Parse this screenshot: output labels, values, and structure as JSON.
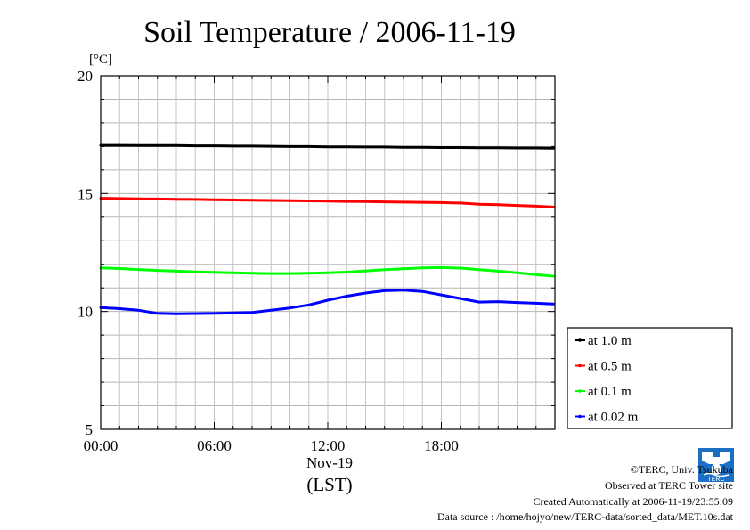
{
  "chart_data": {
    "type": "line",
    "title": "Soil Temperature / 2006-11-19",
    "ylabel": "[°C]",
    "xlabel": "(LST)",
    "date_label": "Nov-19",
    "xlim": [
      "00:00",
      "24:00"
    ],
    "ylim": [
      5,
      20
    ],
    "x_tick_labels": [
      "00:00",
      "06:00",
      "12:00",
      "18:00"
    ],
    "y_tick_labels": [
      "5",
      "10",
      "15",
      "20"
    ],
    "grid": true,
    "legend_position": "right, below plot top",
    "x": [
      "00:00",
      "01:00",
      "02:00",
      "03:00",
      "04:00",
      "05:00",
      "06:00",
      "07:00",
      "08:00",
      "09:00",
      "10:00",
      "11:00",
      "12:00",
      "13:00",
      "14:00",
      "15:00",
      "16:00",
      "17:00",
      "18:00",
      "19:00",
      "20:00",
      "21:00",
      "22:00",
      "23:00",
      "23:55"
    ],
    "series": [
      {
        "name": "at 1.0 m",
        "color": "#000000",
        "values": [
          17.05,
          17.05,
          17.04,
          17.04,
          17.04,
          17.03,
          17.03,
          17.02,
          17.02,
          17.01,
          17.0,
          17.0,
          16.99,
          16.99,
          16.98,
          16.98,
          16.97,
          16.97,
          16.96,
          16.96,
          16.95,
          16.95,
          16.94,
          16.94,
          16.93
        ]
      },
      {
        "name": "at 0.5 m",
        "color": "#ff0000",
        "values": [
          14.8,
          14.79,
          14.78,
          14.77,
          14.76,
          14.75,
          14.74,
          14.73,
          14.72,
          14.71,
          14.7,
          14.69,
          14.68,
          14.67,
          14.66,
          14.65,
          14.64,
          14.63,
          14.62,
          14.6,
          14.55,
          14.53,
          14.5,
          14.47,
          14.43
        ]
      },
      {
        "name": "at 0.1 m",
        "color": "#00ff00",
        "values": [
          11.85,
          11.82,
          11.78,
          11.74,
          11.71,
          11.68,
          11.66,
          11.64,
          11.62,
          11.61,
          11.61,
          11.62,
          11.64,
          11.67,
          11.72,
          11.77,
          11.81,
          11.85,
          11.86,
          11.84,
          11.77,
          11.71,
          11.64,
          11.56,
          11.5
        ]
      },
      {
        "name": "at 0.02 m",
        "color": "#0000ff",
        "values": [
          10.17,
          10.12,
          10.05,
          9.92,
          9.9,
          9.91,
          9.92,
          9.94,
          9.96,
          10.05,
          10.15,
          10.28,
          10.48,
          10.65,
          10.78,
          10.88,
          10.9,
          10.85,
          10.7,
          10.55,
          10.4,
          10.42,
          10.38,
          10.35,
          10.32
        ]
      }
    ]
  },
  "credits": {
    "copyright": "©TERC, Univ. Tsukuba",
    "observed": "Observed at TERC Tower site",
    "created": "Created Automatically at 2006-11-19/23:55:09",
    "source": "Data source : /home/hojyo/new/TERC-data/sorted_data/MET.10s.dat"
  },
  "logo": {
    "text": "TERC",
    "color": "#1a6fc4"
  }
}
